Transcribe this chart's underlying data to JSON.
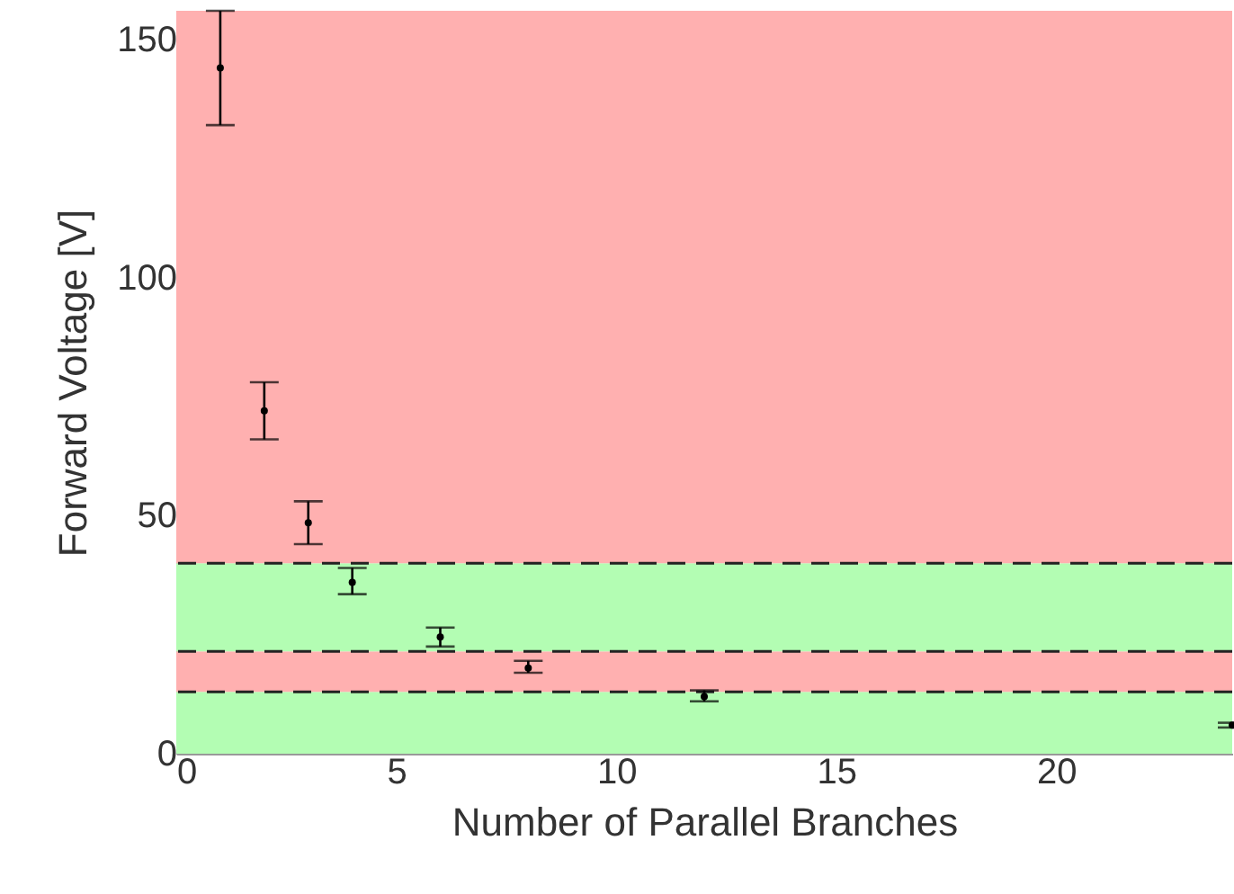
{
  "chart_data": {
    "type": "scatter",
    "xlabel": "Number of Parallel Branches",
    "ylabel": "Forward Voltage [V]",
    "marker": "circle",
    "x": [
      1,
      2,
      3,
      4,
      6,
      8,
      12,
      24
    ],
    "values": [
      144,
      72,
      48.5,
      36,
      24.5,
      18,
      12,
      6
    ],
    "errors": [
      [
        132,
        156
      ],
      [
        66,
        78
      ],
      [
        44,
        53
      ],
      [
        33.5,
        39
      ],
      [
        22.5,
        26.5
      ],
      [
        17,
        19.5
      ],
      [
        11,
        13.3
      ],
      [
        5.5,
        6.5
      ]
    ],
    "color": "#000000",
    "xlim": [
      0,
      24
    ],
    "xticks": [
      0,
      5,
      10,
      15,
      20
    ],
    "ylim": [
      0,
      156
    ],
    "yticks": [
      0,
      50,
      100,
      150
    ],
    "grid": false,
    "bands": [
      {
        "axis": "y",
        "from": 0,
        "to": 13,
        "color": "#b3fdb3"
      },
      {
        "axis": "y",
        "from": 13,
        "to": 21.5,
        "color": "#ffb0b0"
      },
      {
        "axis": "y",
        "from": 21.5,
        "to": 40,
        "color": "#b3fdb3"
      },
      {
        "axis": "y",
        "from": 40,
        "to": 156,
        "color": "#ffb0b0"
      }
    ],
    "ref_lines": [
      {
        "axis": "y",
        "value": 40,
        "line_style": "dashed"
      },
      {
        "axis": "y",
        "value": 21.5,
        "line_style": "dashed"
      },
      {
        "axis": "y",
        "value": 13,
        "line_style": "dashed"
      }
    ]
  }
}
